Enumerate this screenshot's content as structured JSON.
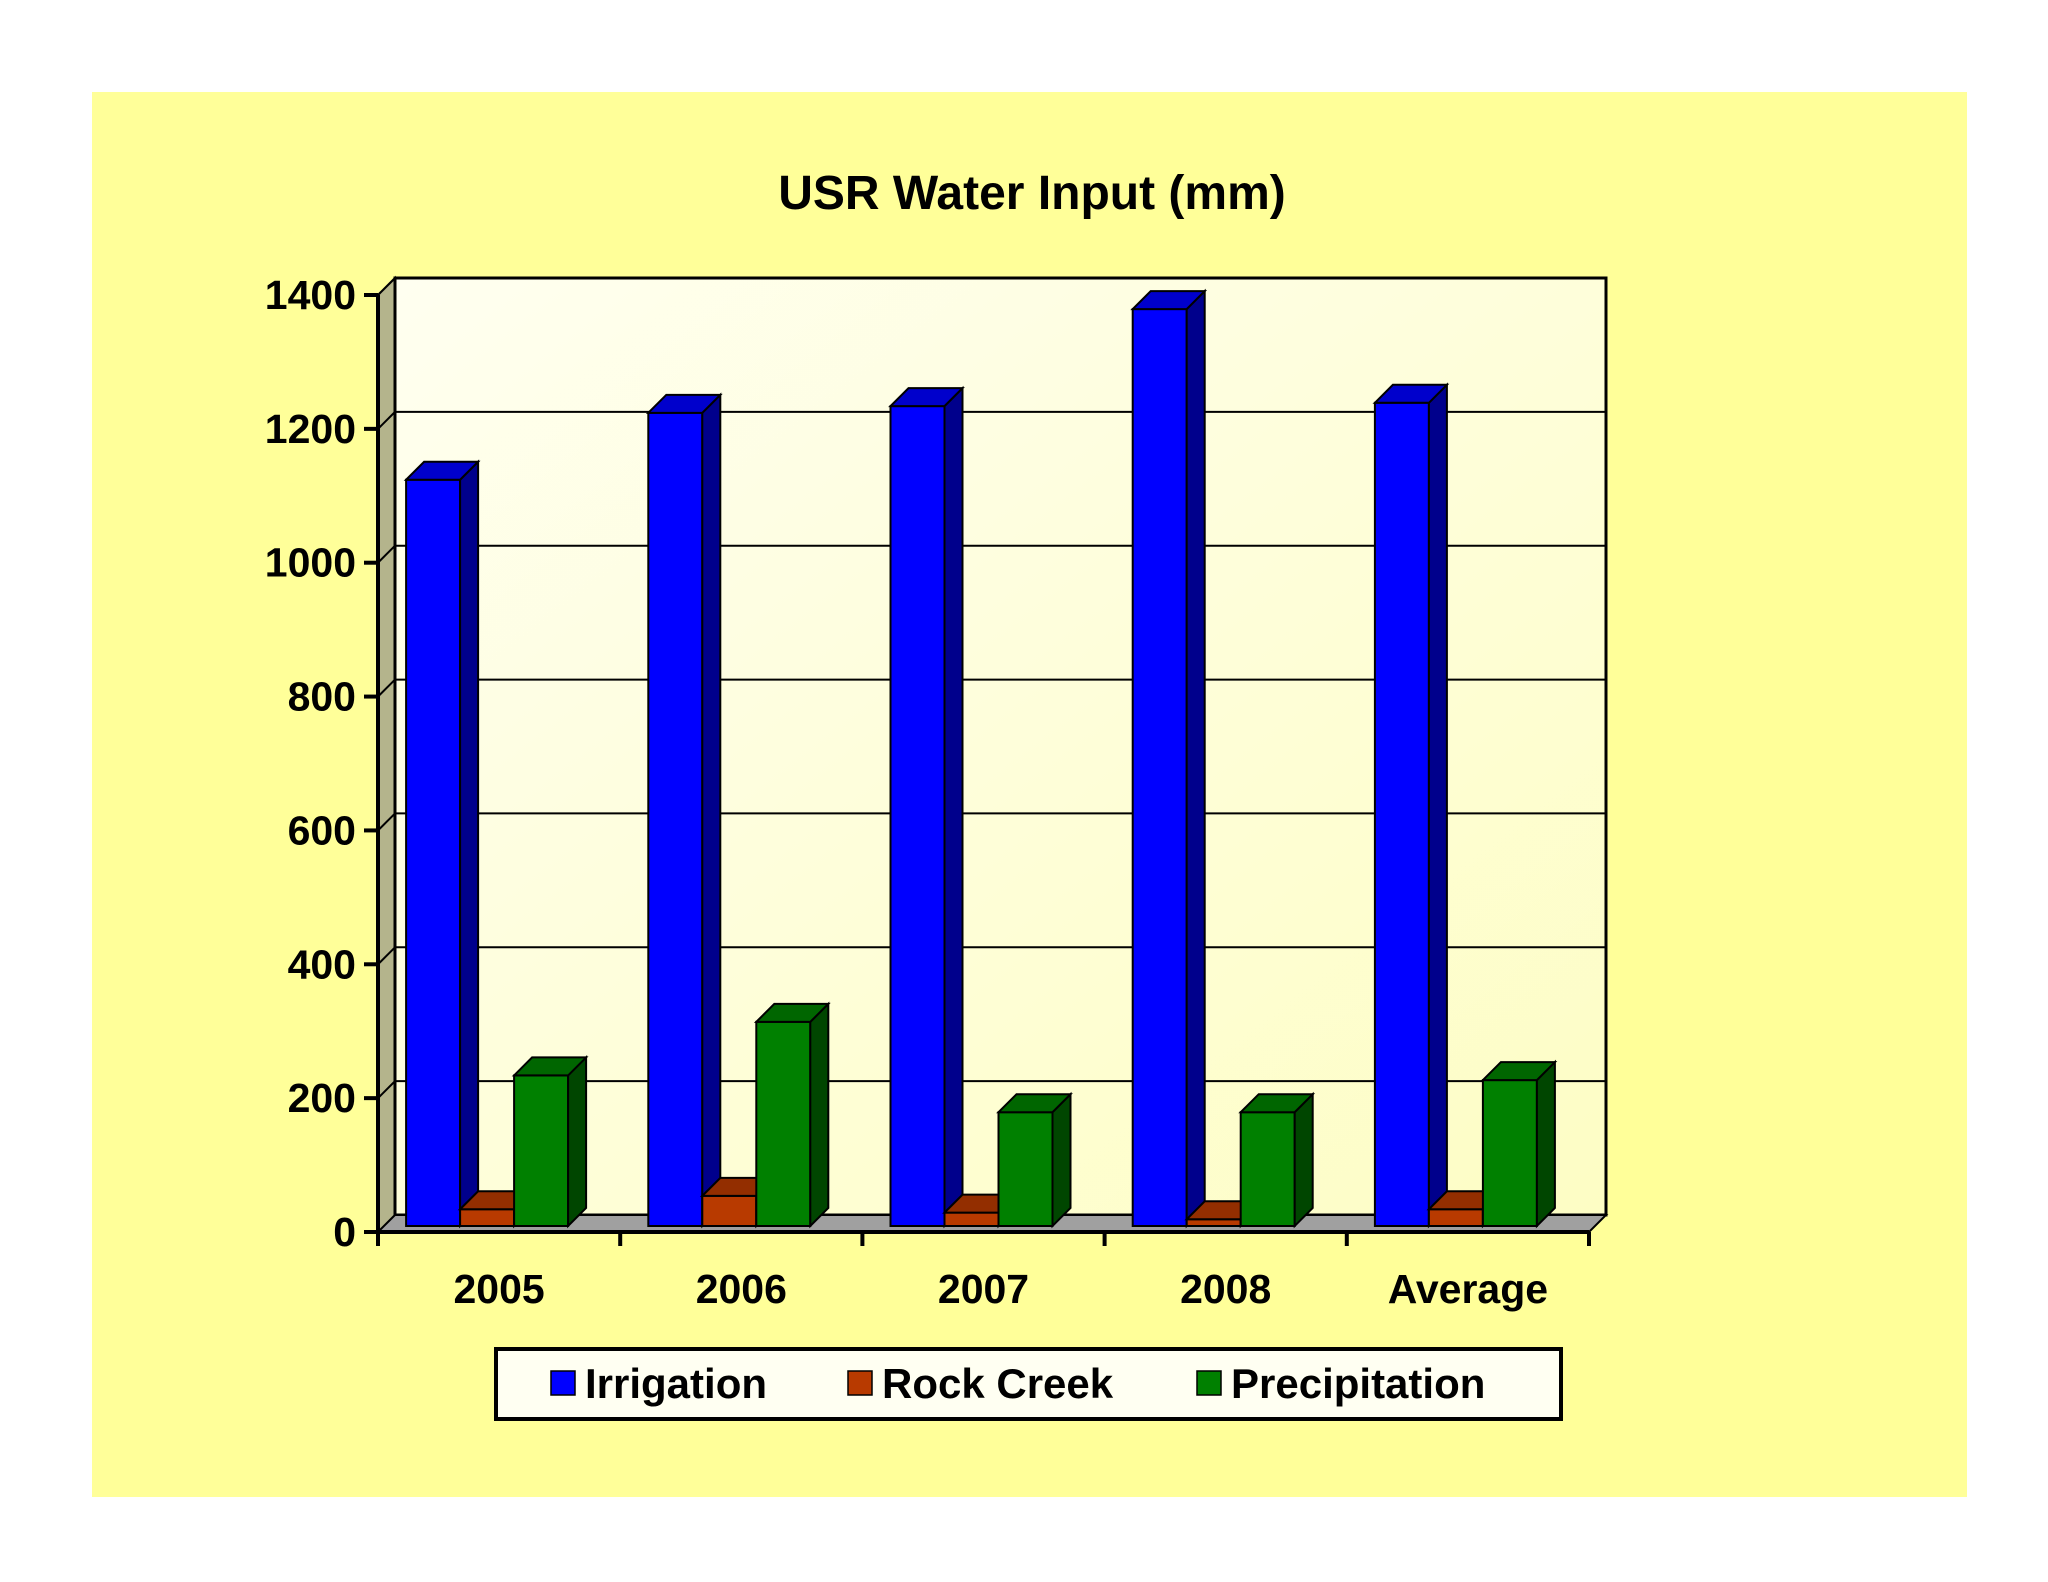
{
  "chart_data": {
    "type": "bar",
    "title": "USR Water Input (mm)",
    "xlabel": "",
    "ylabel": "",
    "categories": [
      "2005",
      "2006",
      "2007",
      "2008",
      "Average"
    ],
    "series": [
      {
        "name": "Irrigation",
        "color": "#0000ff",
        "values": [
          1115,
          1215,
          1225,
          1370,
          1230
        ]
      },
      {
        "name": "Rock Creek",
        "color": "#b83a00",
        "values": [
          25,
          45,
          20,
          10,
          25
        ]
      },
      {
        "name": "Precipitation",
        "color": "#008000",
        "values": [
          225,
          305,
          170,
          170,
          218
        ]
      }
    ],
    "ylim": [
      0,
      1400
    ],
    "yticks": [
      0,
      200,
      400,
      600,
      800,
      1000,
      1200,
      1400
    ],
    "grid": true,
    "legend": "bottom-center"
  }
}
